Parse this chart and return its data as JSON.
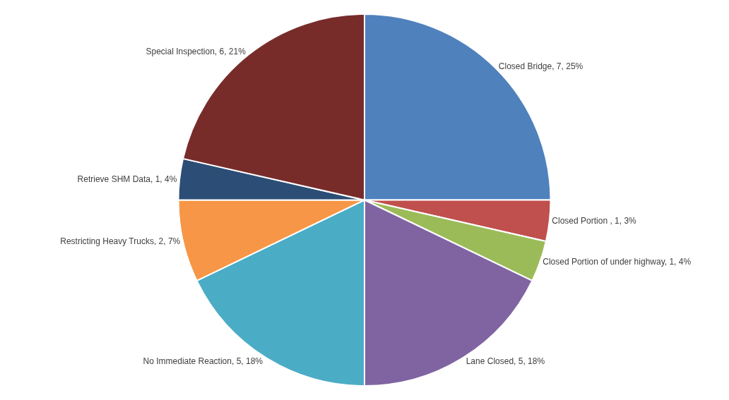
{
  "chart_data": {
    "type": "pie",
    "categories": [
      "Closed Bridge",
      "Closed Portion ",
      "Closed Portion of under highway",
      "Lane Closed",
      "No Immediate Reaction",
      "Restricting Heavy Trucks",
      "Retrieve SHM Data",
      "Special Inspection"
    ],
    "values": [
      7,
      1,
      1,
      5,
      5,
      2,
      1,
      6
    ],
    "colors": [
      "#4f81bd",
      "#c0504d",
      "#9bbb59",
      "#8064a2",
      "#4bacc6",
      "#f79646",
      "#2c4d75",
      "#772c2a"
    ],
    "value_labels": [
      "7, 25%",
      "1, 3%",
      "1, 4%",
      "5, 18%",
      "5, 18%",
      "2, 7%",
      "1, 4%",
      "6, 21%"
    ],
    "legend": false
  }
}
